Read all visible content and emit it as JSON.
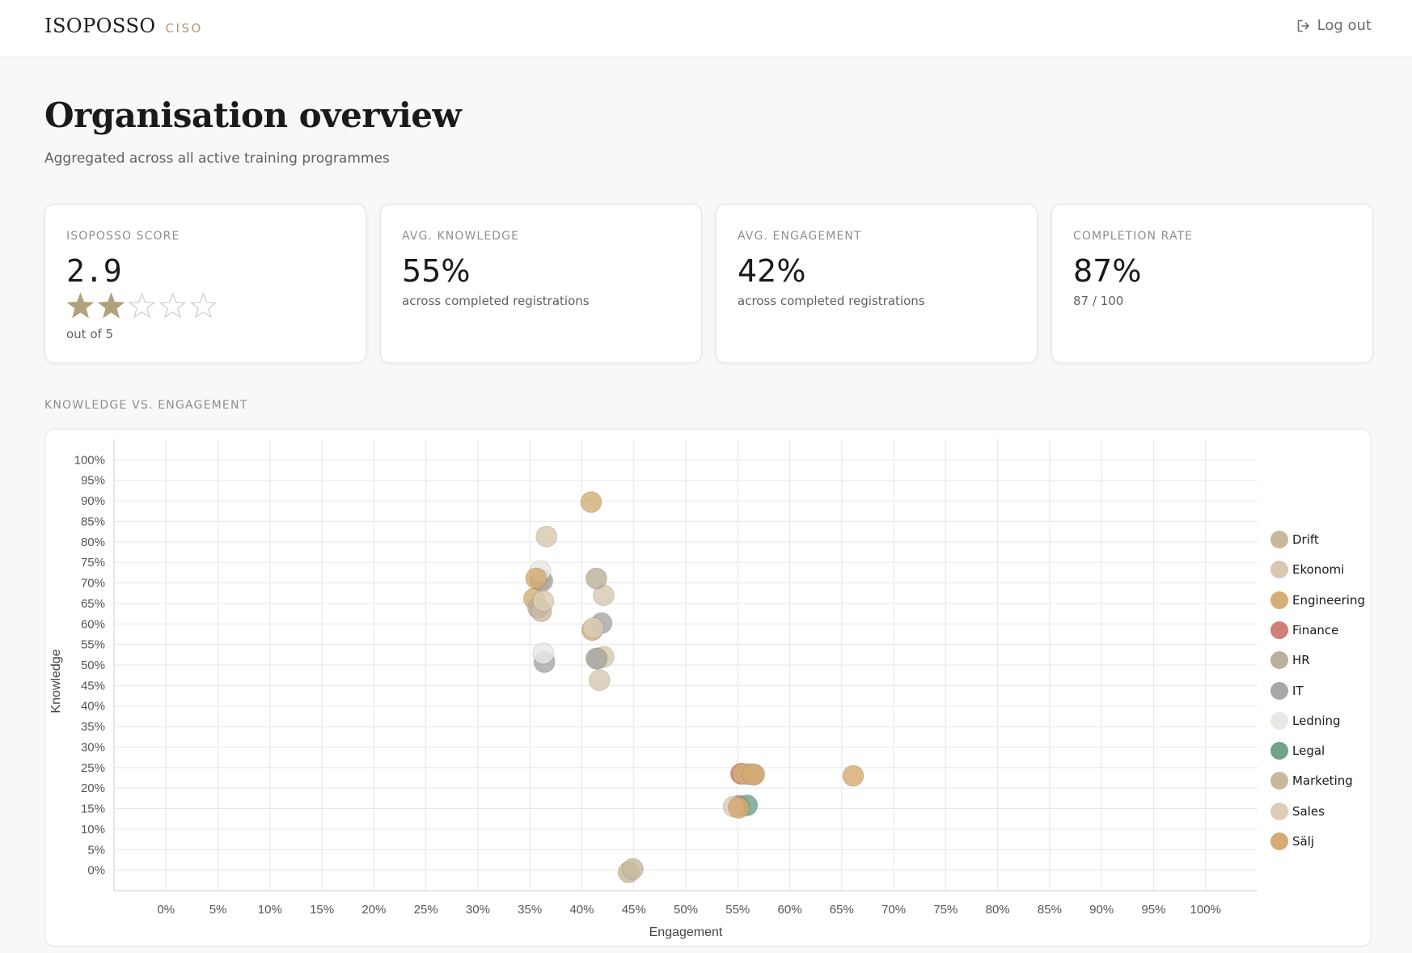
{
  "header": {
    "brand_name": "ISOPOSSO",
    "brand_role": "CISO",
    "logout_label": "Log out"
  },
  "page": {
    "title": "Organisation overview",
    "subtitle": "Aggregated across all active training programmes"
  },
  "cards": {
    "score": {
      "label": "ISOPOSSO SCORE",
      "value": "2.9",
      "rating": 2.9,
      "max": 5,
      "note": "out of 5"
    },
    "knowledge": {
      "label": "AVG. KNOWLEDGE",
      "value": "55%",
      "note": "across completed registrations"
    },
    "engagement": {
      "label": "AVG. ENGAGEMENT",
      "value": "42%",
      "note": "across completed registrations"
    },
    "completion": {
      "label": "COMPLETION RATE",
      "value": "87%",
      "note": "87 / 100"
    }
  },
  "chart_section": {
    "label": "KNOWLEDGE VS. ENGAGEMENT"
  },
  "colors": {
    "accent": "#b0976c",
    "star_filled": "#b3a07c",
    "grid": "#e7e7e7"
  },
  "chart_data": {
    "type": "scatter",
    "xlabel": "Engagement",
    "ylabel": "Knowledge",
    "xlim": [
      -5,
      105
    ],
    "ylim": [
      -5,
      105
    ],
    "x_ticks": [
      "0%",
      "5%",
      "10%",
      "15%",
      "20%",
      "25%",
      "30%",
      "35%",
      "40%",
      "45%",
      "50%",
      "55%",
      "60%",
      "65%",
      "70%",
      "75%",
      "80%",
      "85%",
      "90%",
      "95%",
      "100%"
    ],
    "y_ticks": [
      "0%",
      "5%",
      "10%",
      "15%",
      "20%",
      "25%",
      "30%",
      "35%",
      "40%",
      "45%",
      "50%",
      "55%",
      "60%",
      "65%",
      "70%",
      "75%",
      "80%",
      "85%",
      "90%",
      "95%",
      "100%"
    ],
    "grid": true,
    "legend_position": "right",
    "series": [
      {
        "name": "Drift",
        "color": "#c7b99c",
        "points": [
          [
            41.5,
            51.5
          ],
          [
            44.5,
            -0.5
          ],
          [
            44.9,
            0.3
          ]
        ]
      },
      {
        "name": "Ekonomi",
        "color": "#d8c8b1",
        "points": [
          [
            36.6,
            81.3
          ],
          [
            41.7,
            46.3
          ],
          [
            42.1,
            52
          ],
          [
            42.1,
            67
          ]
        ]
      },
      {
        "name": "Engineering",
        "color": "#d4ae74",
        "points": [
          [
            40.9,
            89.7
          ],
          [
            35.4,
            66.2
          ],
          [
            41,
            58.5
          ],
          [
            56.6,
            23.3
          ]
        ]
      },
      {
        "name": "Finance",
        "color": "#cf8077",
        "points": [
          [
            55.3,
            23.5
          ],
          [
            55.1,
            15.7
          ]
        ]
      },
      {
        "name": "HR",
        "color": "#bbb09a",
        "points": [
          [
            41.4,
            71.1
          ],
          [
            36,
            70.8
          ],
          [
            35.8,
            63.9
          ]
        ]
      },
      {
        "name": "IT",
        "color": "#a8a8a4",
        "points": [
          [
            36.2,
            70.5
          ],
          [
            41.9,
            60.2
          ],
          [
            36.4,
            50.7
          ],
          [
            41.4,
            51.6
          ]
        ]
      },
      {
        "name": "Ledning",
        "color": "#e9e8e4",
        "points": [
          [
            36.3,
            52.8
          ],
          [
            36,
            72.9
          ]
        ]
      },
      {
        "name": "Legal",
        "color": "#72a389",
        "points": [
          [
            55.9,
            15.8
          ]
        ]
      },
      {
        "name": "Marketing",
        "color": "#c9b8a0",
        "points": [
          [
            56,
            23.4
          ],
          [
            36.1,
            63.1
          ]
        ]
      },
      {
        "name": "Sales",
        "color": "#dccdb6",
        "points": [
          [
            36.3,
            65.6
          ],
          [
            54.6,
            15.5
          ],
          [
            41.1,
            59
          ]
        ]
      },
      {
        "name": "Sälj",
        "color": "#d5ab73",
        "points": [
          [
            66.1,
            23
          ],
          [
            35.6,
            71.1
          ],
          [
            55.5,
            23.5
          ],
          [
            56.4,
            23.4
          ],
          [
            55.1,
            15.2
          ]
        ]
      }
    ]
  }
}
